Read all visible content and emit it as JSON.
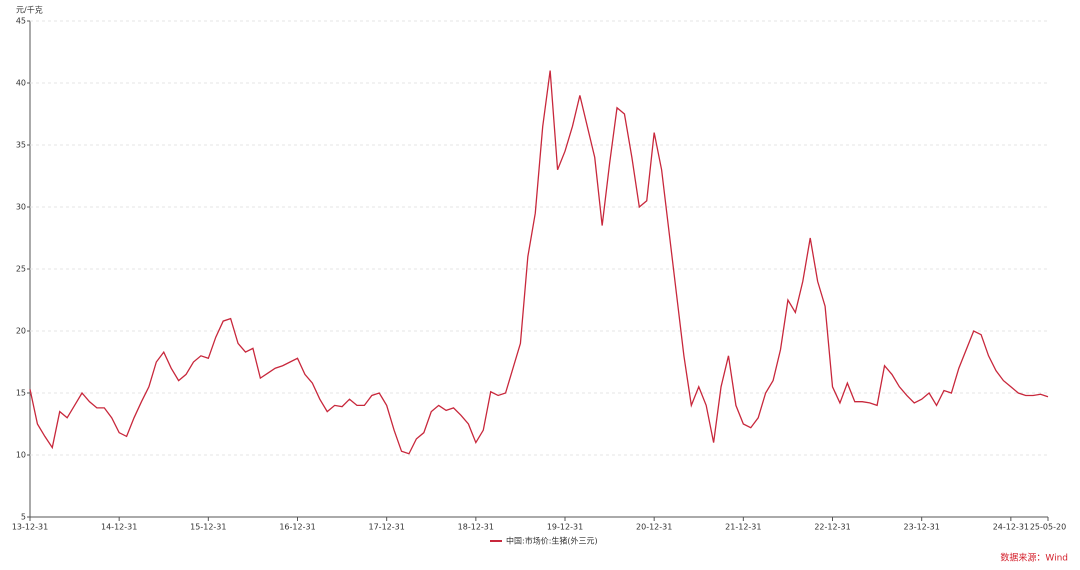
{
  "chart_data": {
    "type": "line",
    "y_label": "元/千克",
    "source": "数据来源：Wind",
    "categories": [
      "13-12-31",
      null,
      null,
      null,
      null,
      null,
      null,
      null,
      null,
      null,
      null,
      null,
      "14-12-31",
      null,
      null,
      null,
      null,
      null,
      null,
      null,
      null,
      null,
      null,
      null,
      "15-12-31",
      null,
      null,
      null,
      null,
      null,
      null,
      null,
      null,
      null,
      null,
      null,
      "16-12-31",
      null,
      null,
      null,
      null,
      null,
      null,
      null,
      null,
      null,
      null,
      null,
      "17-12-31",
      null,
      null,
      null,
      null,
      null,
      null,
      null,
      null,
      null,
      null,
      null,
      "18-12-31",
      null,
      null,
      null,
      null,
      null,
      null,
      null,
      null,
      null,
      null,
      null,
      "19-12-31",
      null,
      null,
      null,
      null,
      null,
      null,
      null,
      null,
      null,
      null,
      null,
      "20-12-31",
      null,
      null,
      null,
      null,
      null,
      null,
      null,
      null,
      null,
      null,
      null,
      "21-12-31",
      null,
      null,
      null,
      null,
      null,
      null,
      null,
      null,
      null,
      null,
      null,
      "22-12-31",
      null,
      null,
      null,
      null,
      null,
      null,
      null,
      null,
      null,
      null,
      null,
      "23-12-31",
      null,
      null,
      null,
      null,
      null,
      null,
      null,
      null,
      null,
      null,
      null,
      "24-12-31",
      null,
      null,
      null,
      null,
      "25-05-20"
    ],
    "series": [
      {
        "name": "中国:市场价:生猪(外三元)",
        "color": "#c8283c",
        "values": [
          15.3,
          12.5,
          11.5,
          10.6,
          13.5,
          13.0,
          14.0,
          15.0,
          14.3,
          13.8,
          13.8,
          13.0,
          11.8,
          11.5,
          13.0,
          14.3,
          15.5,
          17.5,
          18.3,
          17.0,
          16.0,
          16.5,
          17.5,
          18.0,
          17.8,
          19.5,
          20.8,
          21.0,
          19.0,
          18.3,
          18.6,
          16.2,
          16.6,
          17.0,
          17.2,
          17.5,
          17.8,
          16.5,
          15.8,
          14.5,
          13.5,
          14.0,
          13.9,
          14.5,
          14.0,
          14.0,
          14.8,
          15.0,
          14.0,
          12.0,
          10.3,
          10.1,
          11.3,
          11.8,
          13.5,
          14.0,
          13.6,
          13.8,
          13.2,
          12.5,
          11.0,
          12.0,
          15.1,
          14.8,
          15.0,
          17.0,
          19.0,
          26.0,
          29.5,
          36.5,
          41.0,
          33.0,
          34.5,
          36.5,
          39.0,
          36.5,
          34.0,
          28.5,
          33.5,
          38.0,
          37.5,
          34.0,
          30.0,
          30.5,
          36.0,
          33.0,
          28.0,
          23.0,
          18.0,
          14.0,
          15.5,
          14.0,
          11.0,
          15.5,
          18.0,
          14.0,
          12.5,
          12.2,
          13.0,
          15.0,
          16.0,
          18.5,
          22.5,
          21.5,
          24.0,
          27.5,
          24.0,
          22.0,
          15.5,
          14.2,
          15.8,
          14.3,
          14.3,
          14.2,
          14.0,
          17.2,
          16.5,
          15.5,
          14.8,
          14.2,
          14.5,
          15.0,
          14.0,
          15.2,
          15.0,
          17.0,
          18.5,
          20.0,
          19.7,
          18.0,
          16.8,
          16.0,
          15.5,
          15.0,
          14.8,
          14.8,
          14.9,
          14.7
        ]
      }
    ],
    "ylim": [
      5,
      45
    ],
    "yticks": [
      5,
      10,
      15,
      20,
      25,
      30,
      35,
      40,
      45
    ],
    "grid": true
  }
}
